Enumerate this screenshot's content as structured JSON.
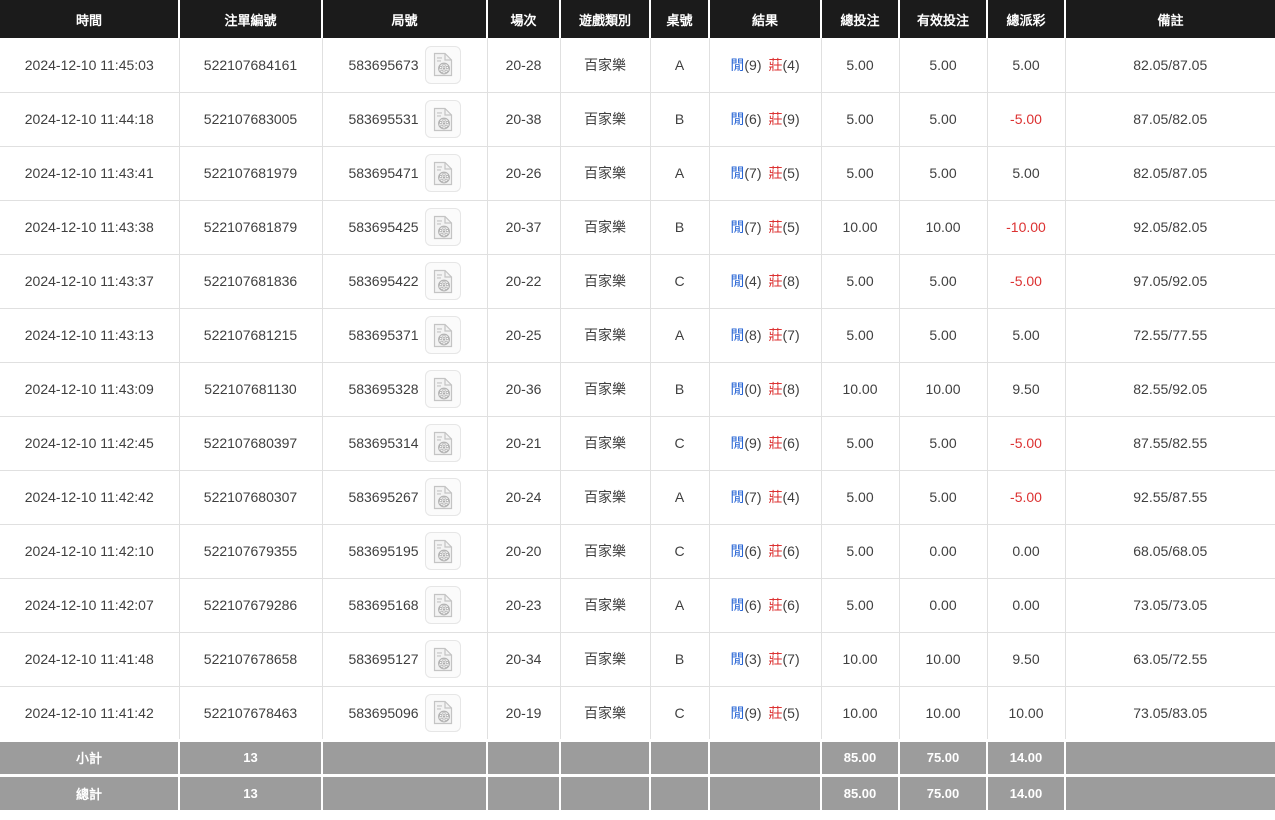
{
  "labels": {
    "player": "閒",
    "banker": "莊"
  },
  "table": {
    "columns": [
      {
        "key": "time",
        "label": "時間"
      },
      {
        "key": "bet_id",
        "label": "注單編號"
      },
      {
        "key": "round",
        "label": "局號"
      },
      {
        "key": "session",
        "label": "場次"
      },
      {
        "key": "game_type",
        "label": "遊戲類別"
      },
      {
        "key": "table_no",
        "label": "桌號"
      },
      {
        "key": "result",
        "label": "結果"
      },
      {
        "key": "total_bet",
        "label": "總投注"
      },
      {
        "key": "valid_bet",
        "label": "有效投注"
      },
      {
        "key": "payout",
        "label": "總派彩"
      },
      {
        "key": "remark",
        "label": "備註"
      }
    ],
    "rows": [
      {
        "time": "2024-12-10 11:45:03",
        "bet_id": "522107684161",
        "round": "583695673",
        "session": "20-28",
        "game_type": "百家樂",
        "table_no": "A",
        "player_score": "9",
        "banker_score": "4",
        "total_bet": "5.00",
        "valid_bet": "5.00",
        "payout": "5.00",
        "remark": "82.05/87.05"
      },
      {
        "time": "2024-12-10 11:44:18",
        "bet_id": "522107683005",
        "round": "583695531",
        "session": "20-38",
        "game_type": "百家樂",
        "table_no": "B",
        "player_score": "6",
        "banker_score": "9",
        "total_bet": "5.00",
        "valid_bet": "5.00",
        "payout": "-5.00",
        "remark": "87.05/82.05"
      },
      {
        "time": "2024-12-10 11:43:41",
        "bet_id": "522107681979",
        "round": "583695471",
        "session": "20-26",
        "game_type": "百家樂",
        "table_no": "A",
        "player_score": "7",
        "banker_score": "5",
        "total_bet": "5.00",
        "valid_bet": "5.00",
        "payout": "5.00",
        "remark": "82.05/87.05"
      },
      {
        "time": "2024-12-10 11:43:38",
        "bet_id": "522107681879",
        "round": "583695425",
        "session": "20-37",
        "game_type": "百家樂",
        "table_no": "B",
        "player_score": "7",
        "banker_score": "5",
        "total_bet": "10.00",
        "valid_bet": "10.00",
        "payout": "-10.00",
        "remark": "92.05/82.05"
      },
      {
        "time": "2024-12-10 11:43:37",
        "bet_id": "522107681836",
        "round": "583695422",
        "session": "20-22",
        "game_type": "百家樂",
        "table_no": "C",
        "player_score": "4",
        "banker_score": "8",
        "total_bet": "5.00",
        "valid_bet": "5.00",
        "payout": "-5.00",
        "remark": "97.05/92.05"
      },
      {
        "time": "2024-12-10 11:43:13",
        "bet_id": "522107681215",
        "round": "583695371",
        "session": "20-25",
        "game_type": "百家樂",
        "table_no": "A",
        "player_score": "8",
        "banker_score": "7",
        "total_bet": "5.00",
        "valid_bet": "5.00",
        "payout": "5.00",
        "remark": "72.55/77.55"
      },
      {
        "time": "2024-12-10 11:43:09",
        "bet_id": "522107681130",
        "round": "583695328",
        "session": "20-36",
        "game_type": "百家樂",
        "table_no": "B",
        "player_score": "0",
        "banker_score": "8",
        "total_bet": "10.00",
        "valid_bet": "10.00",
        "payout": "9.50",
        "remark": "82.55/92.05"
      },
      {
        "time": "2024-12-10 11:42:45",
        "bet_id": "522107680397",
        "round": "583695314",
        "session": "20-21",
        "game_type": "百家樂",
        "table_no": "C",
        "player_score": "9",
        "banker_score": "6",
        "total_bet": "5.00",
        "valid_bet": "5.00",
        "payout": "-5.00",
        "remark": "87.55/82.55"
      },
      {
        "time": "2024-12-10 11:42:42",
        "bet_id": "522107680307",
        "round": "583695267",
        "session": "20-24",
        "game_type": "百家樂",
        "table_no": "A",
        "player_score": "7",
        "banker_score": "4",
        "total_bet": "5.00",
        "valid_bet": "5.00",
        "payout": "-5.00",
        "remark": "92.55/87.55"
      },
      {
        "time": "2024-12-10 11:42:10",
        "bet_id": "522107679355",
        "round": "583695195",
        "session": "20-20",
        "game_type": "百家樂",
        "table_no": "C",
        "player_score": "6",
        "banker_score": "6",
        "total_bet": "5.00",
        "valid_bet": "0.00",
        "payout": "0.00",
        "remark": "68.05/68.05"
      },
      {
        "time": "2024-12-10 11:42:07",
        "bet_id": "522107679286",
        "round": "583695168",
        "session": "20-23",
        "game_type": "百家樂",
        "table_no": "A",
        "player_score": "6",
        "banker_score": "6",
        "total_bet": "5.00",
        "valid_bet": "0.00",
        "payout": "0.00",
        "remark": "73.05/73.05"
      },
      {
        "time": "2024-12-10 11:41:48",
        "bet_id": "522107678658",
        "round": "583695127",
        "session": "20-34",
        "game_type": "百家樂",
        "table_no": "B",
        "player_score": "3",
        "banker_score": "7",
        "total_bet": "10.00",
        "valid_bet": "10.00",
        "payout": "9.50",
        "remark": "63.05/72.55"
      },
      {
        "time": "2024-12-10 11:41:42",
        "bet_id": "522107678463",
        "round": "583695096",
        "session": "20-19",
        "game_type": "百家樂",
        "table_no": "C",
        "player_score": "9",
        "banker_score": "5",
        "total_bet": "10.00",
        "valid_bet": "10.00",
        "payout": "10.00",
        "remark": "73.05/83.05"
      }
    ],
    "subtotal": {
      "label": "小計",
      "count": "13",
      "total_bet": "85.00",
      "valid_bet": "75.00",
      "payout": "14.00"
    },
    "total": {
      "label": "總計",
      "count": "13",
      "total_bet": "85.00",
      "valid_bet": "75.00",
      "payout": "14.00"
    }
  },
  "colors": {
    "header_bg": "#1b1b1b",
    "summary_bg": "#9c9c9c",
    "bet_blue": "#2563d4",
    "loss_red": "#dc3232",
    "border": "#e0e0e0"
  }
}
